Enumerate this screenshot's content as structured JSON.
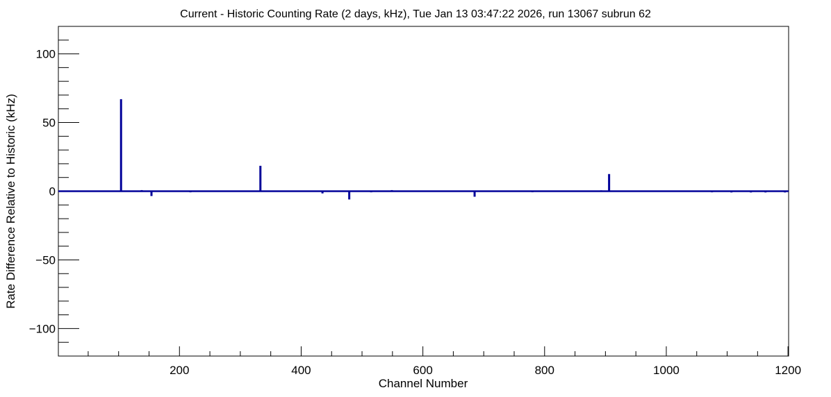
{
  "chart_data": {
    "type": "bar",
    "title": "Current - Historic Counting Rate (2 days, kHz), Tue Jan 13 03:47:22 2026, run 13067 subrun 62",
    "xlabel": "Channel Number",
    "ylabel": "Rate Difference Relative to Historic (kHz)",
    "xlim": [
      1,
      1201
    ],
    "ylim": [
      -120,
      120
    ],
    "x_ticks": [
      200,
      400,
      600,
      800,
      1000,
      1200
    ],
    "x_tick_labels": [
      "200",
      "400",
      "600",
      "800",
      "1000",
      "1200"
    ],
    "y_ticks": [
      -100,
      -50,
      0,
      50,
      100
    ],
    "y_tick_labels": [
      "−100",
      "−50",
      "0",
      "50",
      "100"
    ],
    "grid": false,
    "legend": "none",
    "color": "#000099",
    "baseline": 0,
    "series": [
      {
        "x": [
          104,
          138,
          154,
          218,
          236,
          333,
          435,
          441,
          479,
          515,
          549,
          685,
          780,
          893,
          906,
          1075,
          1107,
          1139,
          1163,
          1195
        ],
        "values": [
          67,
          0.8,
          -3.5,
          -0.8,
          0.5,
          18.5,
          -1.6,
          0.4,
          -6,
          -0.8,
          0.8,
          -4,
          -0.7,
          0.6,
          12.5,
          -0.8,
          -0.9,
          -0.9,
          -0.9,
          -0.9
        ]
      }
    ]
  }
}
